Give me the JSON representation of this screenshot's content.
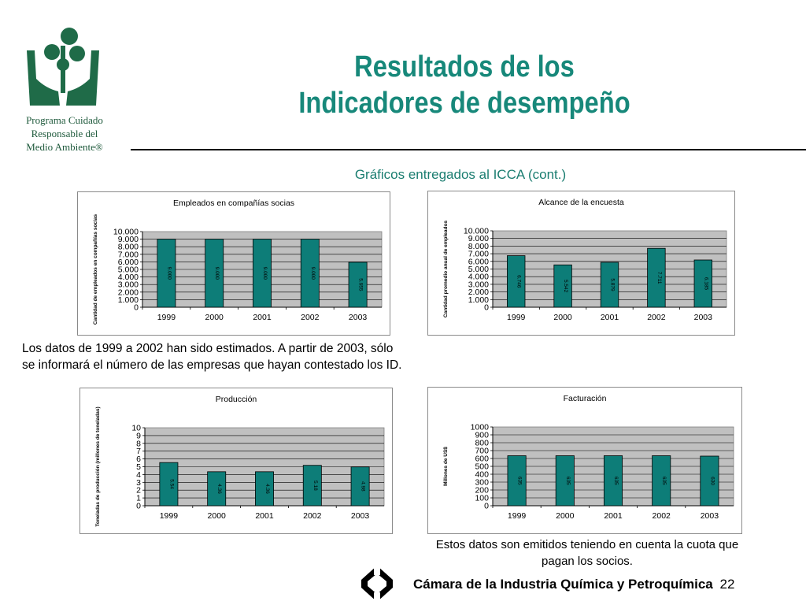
{
  "header": {
    "logo_icon": "hands-plant-logo-icon",
    "logo_caption": [
      "Programa Cuidado",
      "Responsable del",
      "Medio Ambiente®"
    ],
    "title_lines": [
      "Resultados de los",
      "Indicadores de desempeño"
    ],
    "subtitle": "Gráficos entregados al ICCA (cont.)"
  },
  "colors": {
    "bar": "#0d7d78",
    "plot_bg": "#c0c0c0",
    "title": "#17887a"
  },
  "notes": {
    "left": "Los datos de 1999 a 2002 han sido estimados. A partir de 2003, sólo se informará el número de las empresas que hayan contestado los ID.",
    "right": "Estos datos son emitidos teniendo en cuenta la cuota que pagan los socios."
  },
  "footer": {
    "logo_icon": "chamber-logo-icon",
    "text": "Cámara de la Industria Química y Petroquímica",
    "page": "22"
  },
  "chart_data": [
    {
      "type": "bar",
      "title": "Empleados en compañías socias",
      "ylabel": "Cantidad de empleados en compañías socias",
      "categories": [
        "1999",
        "2000",
        "2001",
        "2002",
        "2003"
      ],
      "values": [
        9000,
        9000,
        9000,
        9000,
        5955
      ],
      "value_labels": [
        "9.000",
        "9.000",
        "9.000",
        "9.000",
        "5.955"
      ],
      "ylim": [
        0,
        10000
      ],
      "yticks": [
        "0",
        "1.000",
        "2.000",
        "3.000",
        "4.000",
        "5.000",
        "6.000",
        "7.000",
        "8.000",
        "9.000",
        "10.000"
      ],
      "grid": true
    },
    {
      "type": "bar",
      "title": "Alcance de la encuesta",
      "ylabel": "Cantidad promedio anual de empleados",
      "categories": [
        "1999",
        "2000",
        "2001",
        "2002",
        "2003"
      ],
      "values": [
        6746,
        5542,
        5879,
        7711,
        6185
      ],
      "value_labels": [
        "6.746",
        "5.542",
        "5.879",
        "7.711",
        "6.185"
      ],
      "ylim": [
        0,
        10000
      ],
      "yticks": [
        "0",
        "1.000",
        "2.000",
        "3.000",
        "4.000",
        "5.000",
        "6.000",
        "7.000",
        "8.000",
        "9.000",
        "10.000"
      ],
      "grid": true
    },
    {
      "type": "bar",
      "title": "Producción",
      "ylabel": "Toneladas de producción (millones de toneladas)",
      "categories": [
        "1999",
        "2000",
        "2001",
        "2002",
        "2003"
      ],
      "values": [
        5.54,
        4.36,
        4.36,
        5.18,
        4.98
      ],
      "value_labels": [
        "5.54",
        "4.36",
        "4.36",
        "5.18",
        "4.98"
      ],
      "ylim": [
        0,
        10
      ],
      "yticks": [
        "0",
        "1",
        "2",
        "3",
        "4",
        "5",
        "6",
        "7",
        "8",
        "9",
        "10"
      ],
      "grid": true
    },
    {
      "type": "bar",
      "title": "Facturación",
      "ylabel": "Millones de US$",
      "categories": [
        "1999",
        "2000",
        "2001",
        "2002",
        "2003"
      ],
      "values": [
        635,
        635,
        635,
        635,
        630
      ],
      "value_labels": [
        "635",
        "635",
        "635",
        "635",
        "630"
      ],
      "ylim": [
        0,
        1000
      ],
      "yticks": [
        "0",
        "100",
        "200",
        "300",
        "400",
        "500",
        "600",
        "700",
        "800",
        "900",
        "1000"
      ],
      "grid": true
    }
  ]
}
